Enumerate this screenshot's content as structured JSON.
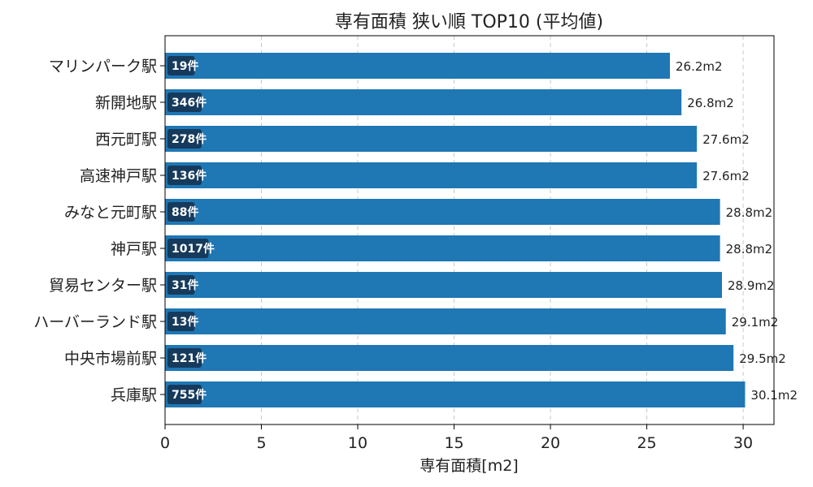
{
  "chart_data": {
    "type": "bar",
    "orientation": "horizontal",
    "title": "専有面積 狭い順 TOP10 (平均値)",
    "xlabel": "専有面積[m2]",
    "ylabel": "",
    "xlim": [
      0,
      31.6
    ],
    "xticks": [
      0,
      5,
      10,
      15,
      20,
      25,
      30
    ],
    "grid": "x-dashed",
    "bar_color": "#1f77b4",
    "badge_color": "#163a5c",
    "categories": [
      "マリンパーク駅",
      "新開地駅",
      "西元町駅",
      "高速神戸駅",
      "みなと元町駅",
      "神戸駅",
      "貿易センター駅",
      "ハーバーランド駅",
      "中央市場前駅",
      "兵庫駅"
    ],
    "values": [
      26.2,
      26.8,
      27.6,
      27.6,
      28.8,
      28.8,
      28.9,
      29.1,
      29.5,
      30.1
    ],
    "value_labels": [
      "26.2m2",
      "26.8m2",
      "27.6m2",
      "27.6m2",
      "28.8m2",
      "28.8m2",
      "28.9m2",
      "29.1m2",
      "29.5m2",
      "30.1m2"
    ],
    "counts": [
      "19件",
      "346件",
      "278件",
      "136件",
      "88件",
      "1017件",
      "31件",
      "13件",
      "121件",
      "755件"
    ]
  }
}
